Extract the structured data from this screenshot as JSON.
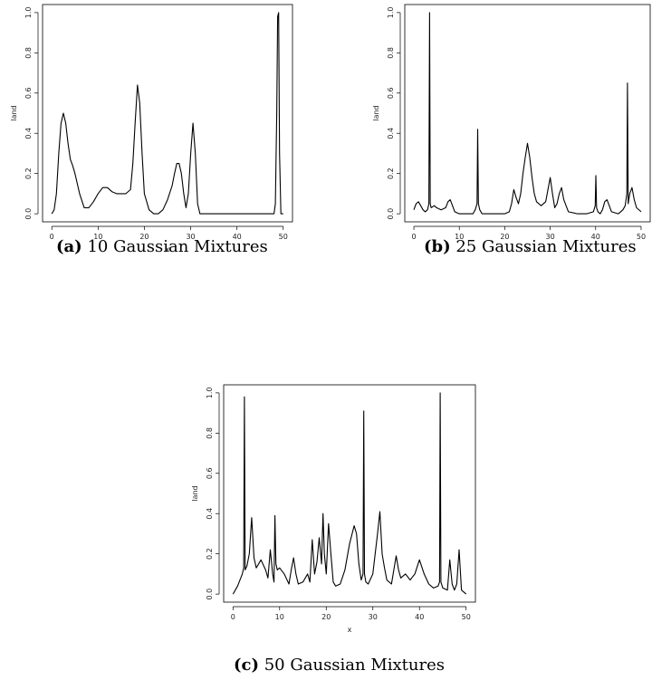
{
  "figure": {
    "panels": [
      {
        "caption_label": "(a)",
        "caption_text": "10 Gaussian Mixtures"
      },
      {
        "caption_label": "(b)",
        "caption_text": "25 Gaussian Mixtures"
      },
      {
        "caption_label": "(c)",
        "caption_text": "50 Gaussian Mixtures"
      }
    ]
  },
  "chart_data": [
    {
      "type": "line",
      "xlabel": "x",
      "ylabel": "land",
      "xlim": [
        0,
        50
      ],
      "ylim": [
        0,
        1.0
      ],
      "xticks": [
        0,
        10,
        20,
        30,
        40,
        50
      ],
      "yticks": [
        0.0,
        0.2,
        0.4,
        0.6,
        0.8,
        1.0
      ],
      "ytick_labels": [
        "0.0",
        "0.2",
        "0.4",
        "0.6",
        "0.8",
        "1.0"
      ],
      "series": [
        {
          "x": [
            0,
            0.5,
            1,
            1.5,
            2,
            2.5,
            3,
            3.5,
            4,
            4.5,
            5,
            6,
            7,
            8,
            9,
            10,
            11,
            12,
            13,
            14,
            15,
            16,
            17,
            17.5,
            18,
            18.5,
            19,
            19.5,
            20,
            21,
            22,
            23,
            24,
            25,
            26,
            26.5,
            27,
            27.5,
            28,
            28.5,
            29,
            29.5,
            30,
            30.5,
            31,
            31.5,
            32,
            33,
            35,
            40,
            45,
            47,
            48,
            48.3,
            48.6,
            48.8,
            49,
            49.2,
            49.5,
            50
          ],
          "values": [
            0.0,
            0.02,
            0.1,
            0.3,
            0.45,
            0.5,
            0.45,
            0.35,
            0.27,
            0.24,
            0.2,
            0.1,
            0.03,
            0.03,
            0.06,
            0.1,
            0.13,
            0.13,
            0.11,
            0.1,
            0.1,
            0.1,
            0.12,
            0.25,
            0.45,
            0.64,
            0.55,
            0.3,
            0.1,
            0.02,
            0.0,
            0.0,
            0.02,
            0.07,
            0.14,
            0.2,
            0.25,
            0.25,
            0.2,
            0.1,
            0.03,
            0.1,
            0.3,
            0.45,
            0.3,
            0.05,
            0.0,
            0.0,
            0.0,
            0.0,
            0.0,
            0.0,
            0.0,
            0.05,
            0.5,
            0.98,
            1.0,
            0.3,
            0.0,
            0.0
          ]
        }
      ]
    },
    {
      "type": "line",
      "xlabel": "x",
      "ylabel": "land",
      "xlim": [
        0,
        50
      ],
      "ylim": [
        0,
        1.0
      ],
      "xticks": [
        0,
        10,
        20,
        30,
        40,
        50
      ],
      "yticks": [
        0.0,
        0.2,
        0.4,
        0.6,
        0.8,
        1.0
      ],
      "ytick_labels": [
        "0.0",
        "0.2",
        "0.4",
        "0.6",
        "0.8",
        "1.0"
      ],
      "series": [
        {
          "x": [
            0,
            0.5,
            1,
            1.5,
            2,
            2.5,
            3,
            3.3,
            3.45,
            3.6,
            3.8,
            4.5,
            5,
            6,
            7,
            7.5,
            8,
            8.5,
            9,
            10,
            11,
            12,
            13,
            13.5,
            13.9,
            14.05,
            14.2,
            14.5,
            15,
            17,
            19,
            20,
            21,
            21.5,
            22,
            22.5,
            23,
            23.5,
            24,
            24.5,
            25,
            25.5,
            26,
            26.5,
            27,
            28,
            29,
            29.5,
            30,
            30.5,
            31,
            31.5,
            32,
            32.5,
            33,
            34,
            36,
            38,
            39.5,
            39.9,
            40.05,
            40.2,
            40.5,
            41,
            41.5,
            42,
            42.5,
            43,
            43.5,
            45,
            46,
            46.5,
            46.85,
            47.0,
            47.15,
            47.5,
            48,
            48.5,
            49,
            50
          ],
          "values": [
            0.02,
            0.05,
            0.06,
            0.04,
            0.02,
            0.01,
            0.02,
            0.05,
            1.0,
            0.05,
            0.03,
            0.04,
            0.03,
            0.02,
            0.03,
            0.06,
            0.07,
            0.04,
            0.01,
            0.0,
            0.0,
            0.0,
            0.0,
            0.02,
            0.05,
            0.42,
            0.05,
            0.02,
            0.0,
            0.0,
            0.0,
            0.0,
            0.01,
            0.05,
            0.12,
            0.08,
            0.05,
            0.1,
            0.2,
            0.28,
            0.35,
            0.28,
            0.18,
            0.1,
            0.06,
            0.04,
            0.06,
            0.12,
            0.18,
            0.1,
            0.03,
            0.05,
            0.1,
            0.13,
            0.07,
            0.01,
            0.0,
            0.0,
            0.01,
            0.04,
            0.19,
            0.03,
            0.01,
            0.0,
            0.02,
            0.06,
            0.07,
            0.04,
            0.01,
            0.0,
            0.02,
            0.04,
            0.1,
            0.65,
            0.05,
            0.1,
            0.13,
            0.07,
            0.03,
            0.01
          ]
        }
      ]
    },
    {
      "type": "line",
      "xlabel": "x",
      "ylabel": "land",
      "xlim": [
        0,
        50
      ],
      "ylim": [
        0,
        1.0
      ],
      "xticks": [
        0,
        10,
        20,
        30,
        40,
        50
      ],
      "yticks": [
        0.0,
        0.2,
        0.4,
        0.6,
        0.8,
        1.0
      ],
      "ytick_labels": [
        "0.0",
        "0.2",
        "0.4",
        "0.6",
        "0.8",
        "1.0"
      ],
      "series": [
        {
          "x": [
            0,
            1,
            2,
            2.3,
            2.45,
            2.6,
            3,
            3.5,
            4,
            4.5,
            5,
            6,
            7,
            7.5,
            8,
            8.5,
            8.8,
            9,
            9.2,
            9.5,
            10,
            11,
            12,
            12.5,
            13,
            13.5,
            14,
            15,
            16,
            16.5,
            17,
            17.5,
            18,
            18.5,
            19,
            19.3,
            19.6,
            20,
            20.5,
            21,
            21.5,
            22,
            23,
            24,
            25,
            26,
            26.5,
            27,
            27.5,
            27.9,
            28.05,
            28.2,
            28.5,
            29,
            30,
            31,
            31.5,
            32,
            32.5,
            33,
            34,
            35,
            35.5,
            36,
            37,
            38,
            39,
            40,
            41,
            42,
            43,
            44,
            44.3,
            44.45,
            44.6,
            45,
            46,
            46.5,
            47,
            47.5,
            48,
            48.5,
            49,
            50
          ],
          "values": [
            0.0,
            0.04,
            0.1,
            0.13,
            0.98,
            0.12,
            0.14,
            0.2,
            0.38,
            0.18,
            0.13,
            0.17,
            0.12,
            0.08,
            0.22,
            0.1,
            0.06,
            0.39,
            0.15,
            0.12,
            0.13,
            0.1,
            0.05,
            0.12,
            0.18,
            0.1,
            0.05,
            0.06,
            0.1,
            0.06,
            0.27,
            0.1,
            0.16,
            0.28,
            0.15,
            0.4,
            0.2,
            0.1,
            0.35,
            0.2,
            0.06,
            0.04,
            0.05,
            0.12,
            0.25,
            0.34,
            0.3,
            0.15,
            0.07,
            0.1,
            0.91,
            0.1,
            0.06,
            0.05,
            0.1,
            0.3,
            0.41,
            0.2,
            0.13,
            0.07,
            0.05,
            0.19,
            0.12,
            0.08,
            0.1,
            0.07,
            0.1,
            0.17,
            0.1,
            0.05,
            0.03,
            0.04,
            0.06,
            1.0,
            0.06,
            0.03,
            0.02,
            0.17,
            0.05,
            0.02,
            0.05,
            0.22,
            0.02,
            0.0
          ]
        }
      ]
    }
  ]
}
